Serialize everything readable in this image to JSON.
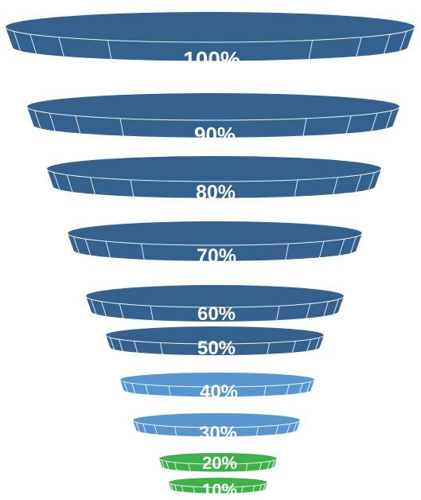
{
  "colors": {
    "dark_blue": "#34618e",
    "light_blue": "#5896cf",
    "green": "#3fb14b"
  },
  "levels": [
    {
      "label": "100%",
      "color": "dark_blue"
    },
    {
      "label": "90%",
      "color": "dark_blue"
    },
    {
      "label": "80%",
      "color": "dark_blue"
    },
    {
      "label": "70%",
      "color": "dark_blue"
    },
    {
      "label": "60%",
      "color": "dark_blue"
    },
    {
      "label": "50%",
      "color": "dark_blue"
    },
    {
      "label": "40%",
      "color": "light_blue"
    },
    {
      "label": "30%",
      "color": "light_blue"
    },
    {
      "label": "20%",
      "color": "green"
    },
    {
      "label": "10%",
      "color": "green"
    }
  ]
}
